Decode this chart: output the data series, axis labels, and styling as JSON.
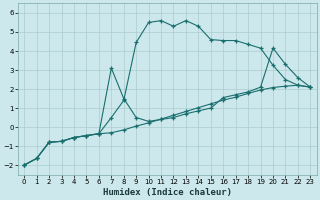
{
  "xlabel": "Humidex (Indice chaleur)",
  "background_color": "#cce8ec",
  "grid_color": "#aacccc",
  "line_color": "#1a6e6e",
  "xlim": [
    -0.5,
    23.5
  ],
  "ylim": [
    -2.5,
    6.5
  ],
  "yticks": [
    -2,
    -1,
    0,
    1,
    2,
    3,
    4,
    5,
    6
  ],
  "xticks": [
    0,
    1,
    2,
    3,
    4,
    5,
    6,
    7,
    8,
    9,
    10,
    11,
    12,
    13,
    14,
    15,
    16,
    17,
    18,
    19,
    20,
    21,
    22,
    23
  ],
  "line1_x": [
    0,
    1,
    2,
    3,
    4,
    5,
    6,
    7,
    8,
    9,
    10,
    11,
    12,
    13,
    14,
    15,
    16,
    17,
    18,
    19,
    20,
    21,
    22,
    23
  ],
  "line1_y": [
    -2.0,
    -1.65,
    -0.8,
    -0.75,
    -0.55,
    -0.45,
    -0.35,
    -0.3,
    -0.15,
    0.05,
    0.22,
    0.42,
    0.62,
    0.82,
    1.02,
    1.22,
    1.42,
    1.57,
    1.77,
    1.95,
    2.08,
    2.15,
    2.2,
    2.1
  ],
  "line2_x": [
    0,
    1,
    2,
    3,
    4,
    5,
    6,
    7,
    8,
    9,
    10,
    11,
    12,
    13,
    14,
    15,
    16,
    17,
    18,
    19,
    20,
    21,
    22,
    23
  ],
  "line2_y": [
    -2.0,
    -1.65,
    -0.8,
    -0.75,
    -0.55,
    -0.45,
    -0.35,
    0.5,
    1.4,
    4.45,
    5.5,
    5.6,
    5.3,
    5.6,
    5.3,
    4.6,
    4.55,
    4.55,
    4.35,
    4.15,
    3.25,
    2.5,
    2.2,
    2.1
  ],
  "line3_x": [
    0,
    1,
    2,
    3,
    4,
    5,
    6,
    7,
    8,
    9,
    10,
    11,
    12,
    13,
    14,
    15,
    16,
    17,
    18,
    19,
    20,
    21,
    22,
    23
  ],
  "line3_y": [
    -2.0,
    -1.65,
    -0.8,
    -0.75,
    -0.55,
    -0.45,
    -0.35,
    3.1,
    1.5,
    0.5,
    0.3,
    0.4,
    0.5,
    0.7,
    0.85,
    1.0,
    1.55,
    1.7,
    1.85,
    2.1,
    4.15,
    3.3,
    2.6,
    2.1
  ]
}
